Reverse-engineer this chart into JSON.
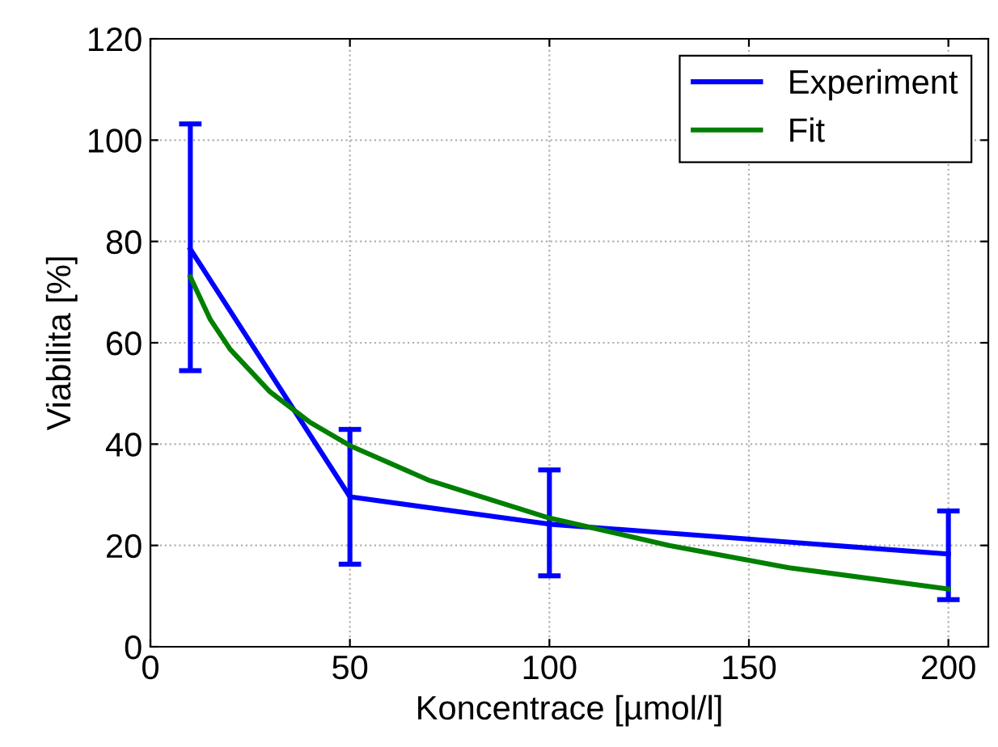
{
  "chart_data": {
    "type": "line",
    "xlabel": "Koncentrace [µmol/l]",
    "ylabel": "Viabilita [%]",
    "xlim": [
      0,
      210
    ],
    "xticks": [
      0,
      50,
      100,
      150,
      200
    ],
    "ylim": [
      0,
      120
    ],
    "yticks": [
      0,
      20,
      40,
      60,
      80,
      100,
      120
    ],
    "grid": true,
    "legend": "top right",
    "marker": "none",
    "line_style": "solid",
    "series": [
      {
        "name": "Experiment",
        "color": "#0000ff",
        "x": [
          10,
          50,
          100,
          200
        ],
        "values": [
          78.5,
          29.6,
          24.2,
          18.3
        ],
        "errors": [
          [
            54.5,
            103.2
          ],
          [
            16.3,
            42.9
          ],
          [
            14,
            34.9
          ],
          [
            9.3,
            26.8
          ]
        ]
      },
      {
        "name": "Fit",
        "color": "#007f00",
        "x": [
          10,
          15,
          20,
          30,
          40,
          50,
          70,
          100,
          130,
          160,
          200
        ],
        "values": [
          73,
          64.6,
          58.7,
          50.3,
          44.3,
          39.7,
          32.8,
          25.4,
          20,
          15.6,
          11.4
        ]
      }
    ]
  }
}
